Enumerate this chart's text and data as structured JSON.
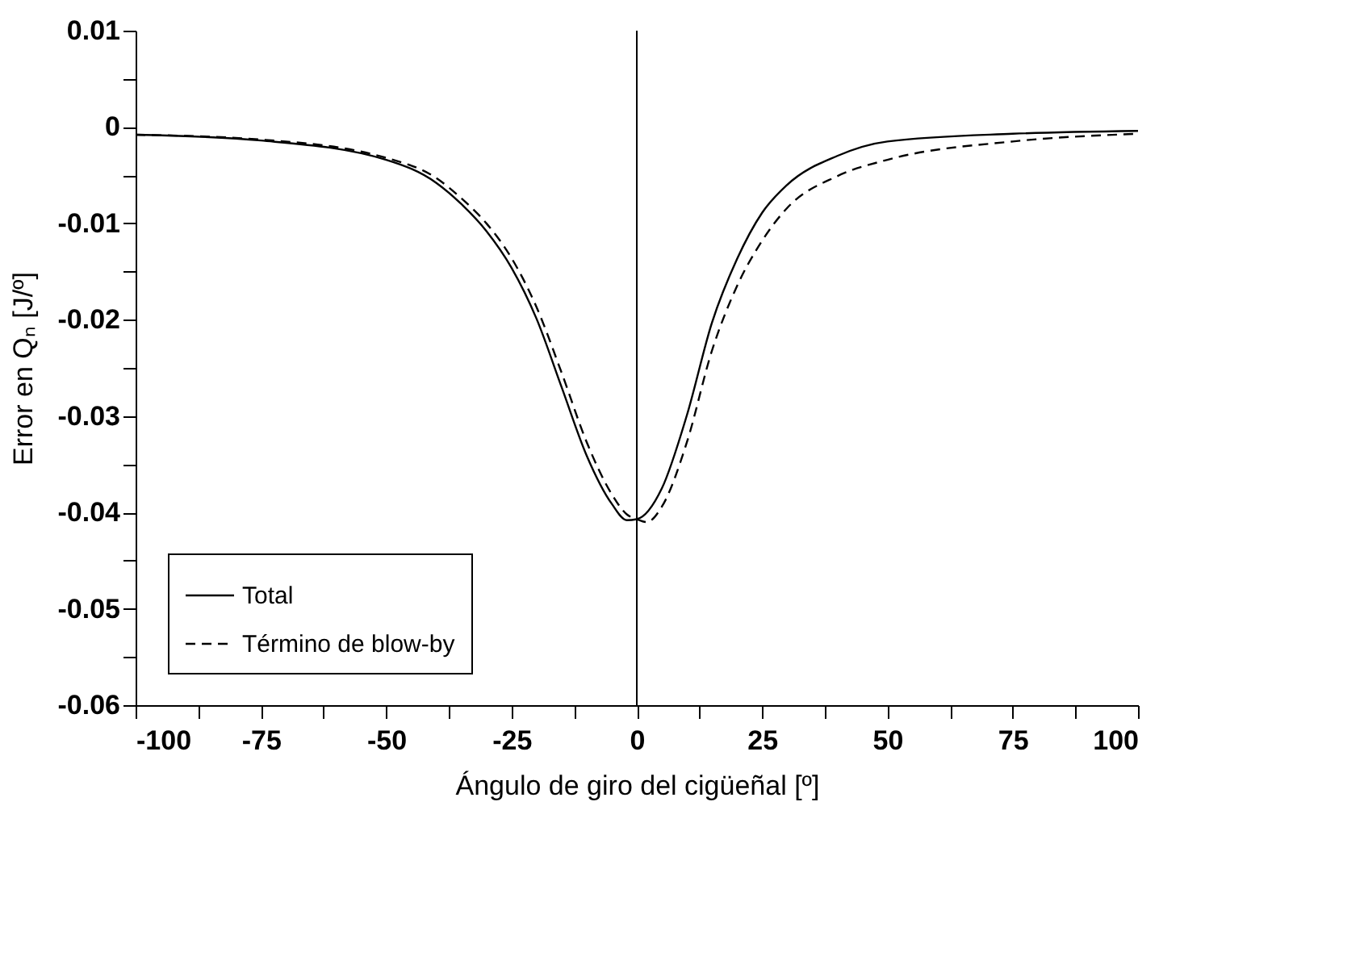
{
  "chart_data": {
    "type": "line",
    "xlabel": "Ángulo de giro del cigüeñal [º]",
    "ylabel": "Error en Qₙ [J/º]",
    "xlim": [
      -100,
      100
    ],
    "ylim": [
      -0.06,
      0.01
    ],
    "xticks": [
      -100,
      {
        "value": -87.5,
        "label": null
      },
      -75,
      {
        "value": -62.5,
        "label": null
      },
      -50,
      {
        "value": -37.5,
        "label": null
      },
      -25,
      {
        "value": -12.5,
        "label": null
      },
      0,
      {
        "value": 12.5,
        "label": null
      },
      25,
      {
        "value": 37.5,
        "label": null
      },
      50,
      {
        "value": 62.5,
        "label": null
      },
      75,
      {
        "value": 87.5,
        "label": null
      },
      100
    ],
    "yticks": [
      -0.06,
      {
        "value": -0.055,
        "label": null
      },
      -0.05,
      {
        "value": -0.045,
        "label": null
      },
      -0.04,
      {
        "value": -0.035,
        "label": null
      },
      -0.03,
      {
        "value": -0.025,
        "label": null
      },
      -0.02,
      {
        "value": -0.015,
        "label": null
      },
      -0.01,
      {
        "value": -0.005,
        "label": null
      },
      0,
      {
        "value": 0.005,
        "label": null
      },
      0.01
    ],
    "grid": false,
    "legend": "bottom left",
    "marker": "none",
    "ref_lines": [
      {
        "axis": "x",
        "value": 0,
        "color": "#000000",
        "line_style": "solid"
      }
    ],
    "series": [
      {
        "name": "Total",
        "color": "#000000",
        "line_style": "solid",
        "x": [
          -100,
          -75,
          -50,
          -40,
          -35,
          -30,
          -25,
          -20,
          -15,
          -10,
          -5,
          -2,
          0,
          5,
          10,
          15,
          20,
          25,
          30,
          40,
          50,
          75,
          100
        ],
        "values": [
          -0.0008,
          -0.0014,
          -0.0034,
          -0.0058,
          -0.008,
          -0.0108,
          -0.0146,
          -0.0199,
          -0.027,
          -0.0341,
          -0.0391,
          -0.0408,
          -0.0407,
          -0.0375,
          -0.0299,
          -0.0203,
          -0.0137,
          -0.0089,
          -0.006,
          -0.003,
          -0.0015,
          -0.0007,
          -0.0004
        ]
      },
      {
        "name": "Término de blow-by",
        "color": "#000000",
        "line_style": "dashed",
        "x": [
          -100,
          -75,
          -50,
          -40,
          -35,
          -30,
          -25,
          -20,
          -15,
          -10,
          -5,
          -2,
          0,
          2,
          5,
          10,
          15,
          20,
          25,
          30,
          40,
          50,
          75,
          100
        ],
        "values": [
          -0.0008,
          -0.0013,
          -0.0032,
          -0.0053,
          -0.0074,
          -0.01,
          -0.0136,
          -0.0187,
          -0.0255,
          -0.0327,
          -0.0381,
          -0.0402,
          -0.0407,
          -0.041,
          -0.0394,
          -0.0327,
          -0.0232,
          -0.0165,
          -0.0118,
          -0.0084,
          -0.0051,
          -0.0034,
          -0.0015,
          -0.0007
        ]
      }
    ]
  }
}
